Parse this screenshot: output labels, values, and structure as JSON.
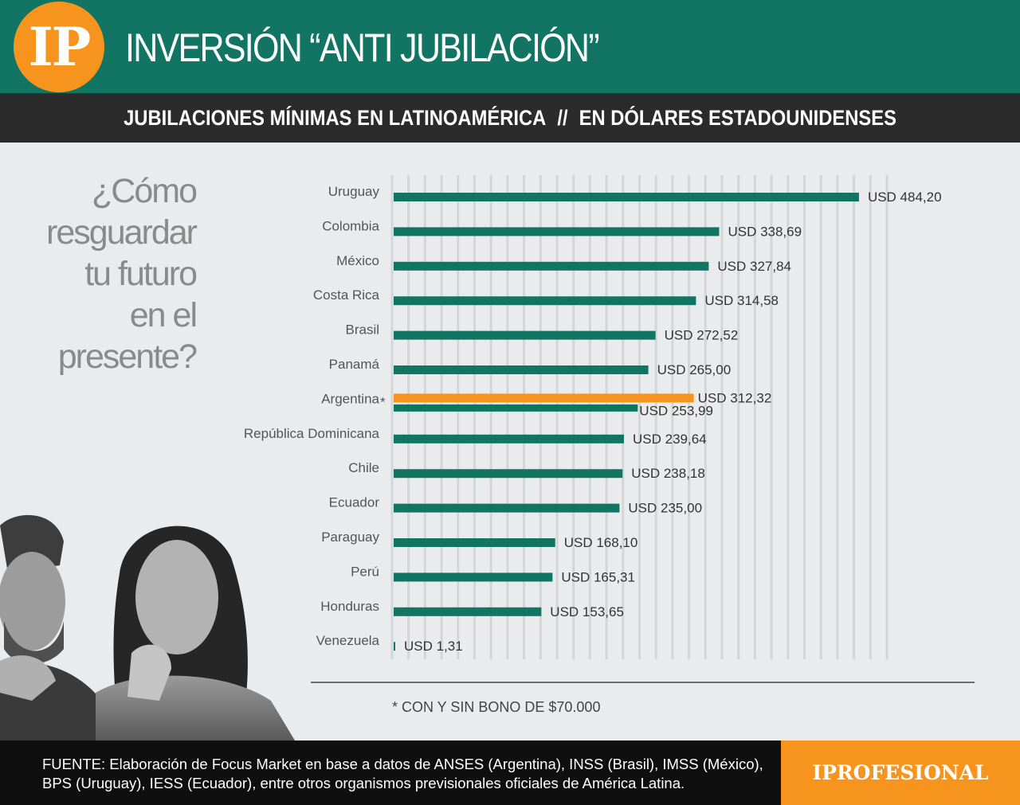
{
  "header": {
    "logo_text": "IP",
    "title": "INVERSIÓN “ANTI JUBILACIÓN”"
  },
  "subheader": {
    "left": "JUBILACIONES MÍNIMAS EN LATINOAMÉRICA",
    "separator": "//",
    "right": "EN DÓLARES ESTADOUNIDENSES"
  },
  "sidebar": {
    "question_lines": [
      "¿Cómo",
      "resguardar",
      "tu futuro",
      "en el",
      "presente?"
    ]
  },
  "chart_data": {
    "type": "bar",
    "orientation": "horizontal",
    "value_prefix": "USD ",
    "categories": [
      "Uruguay",
      "Colombia",
      "México",
      "Costa Rica",
      "Brasil",
      "Panamá",
      "Argentina",
      "República Dominicana",
      "Chile",
      "Ecuador",
      "Paraguay",
      "Perú",
      "Honduras",
      "Venezuela"
    ],
    "values": [
      484.2,
      338.69,
      327.84,
      314.58,
      272.52,
      265.0,
      253.99,
      239.64,
      238.18,
      235.0,
      168.1,
      165.31,
      153.65,
      1.31
    ],
    "value_labels": [
      "USD 484,20",
      "USD 338,69",
      "USD 327,84",
      "USD 314,58",
      "USD 272,52",
      "USD 265,00",
      "USD 253,99",
      "USD 239,64",
      "USD 238,18",
      "USD 235,00",
      "USD 168,10",
      "USD 165,31",
      "USD 153,65",
      "USD 1,31"
    ],
    "extra": {
      "category": "Argentina",
      "marker": "*",
      "value": 312.32,
      "value_label": "USD 312,32"
    },
    "colors": {
      "bar": "#127564",
      "highlight": "#f7941e",
      "grid": "#d3d6d8"
    },
    "grid": true,
    "xlim": [
      0,
      520
    ]
  },
  "footnote": "* CON Y SIN BONO DE $70.000",
  "footer": {
    "source": "FUENTE: Elaboración de Focus Market en base a datos de ANSES (Argentina), INSS (Brasil), IMSS (México), BPS (Uruguay), IESS (Ecuador), entre otros organismos previsionales oficiales de América Latina.",
    "brand": "IPROFESIONAL"
  }
}
